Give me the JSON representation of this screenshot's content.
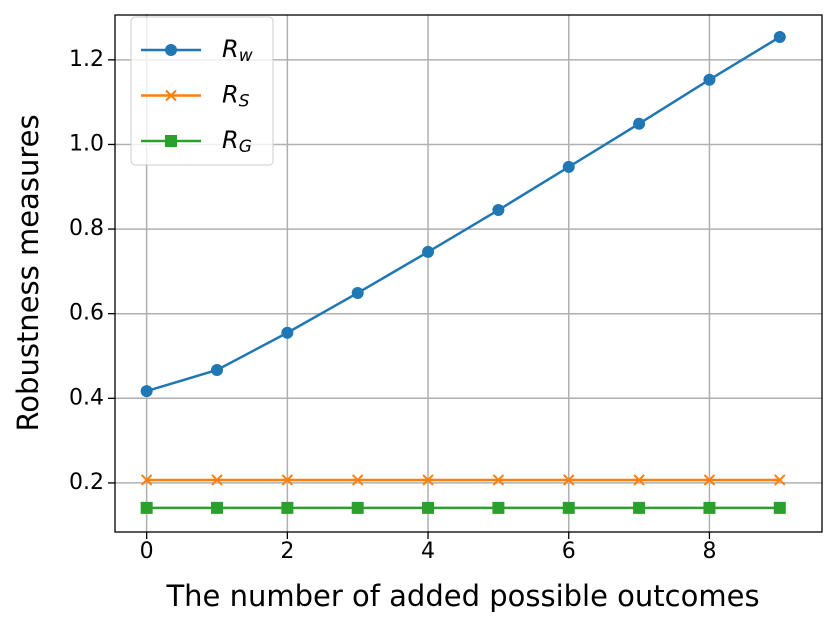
{
  "chart_data": {
    "type": "line",
    "xlabel": "The number of added possible outcomes",
    "ylabel": "Robustness measures",
    "x": [
      0,
      1,
      2,
      3,
      4,
      5,
      6,
      7,
      8,
      9
    ],
    "series": [
      {
        "name": "Rw",
        "color": "#1f77b4",
        "marker": "o",
        "values": [
          0.417,
          0.467,
          0.555,
          0.649,
          0.746,
          0.845,
          0.947,
          1.049,
          1.153,
          1.254
        ]
      },
      {
        "name": "RS",
        "color": "#ff7f0e",
        "marker": "x",
        "values": [
          0.207,
          0.207,
          0.207,
          0.207,
          0.207,
          0.207,
          0.207,
          0.207,
          0.207,
          0.207
        ]
      },
      {
        "name": "RG",
        "color": "#2ca02c",
        "marker": "s",
        "values": [
          0.141,
          0.141,
          0.141,
          0.141,
          0.141,
          0.141,
          0.141,
          0.141,
          0.141,
          0.141
        ]
      }
    ],
    "xlim": [
      -0.45,
      9.6
    ],
    "ylim": [
      0.084,
      1.306
    ],
    "xticks": [
      0,
      2,
      4,
      6,
      8
    ],
    "yticks": [
      0.2,
      0.4,
      0.6,
      0.8,
      {
        "value": 1,
        "label": "1.0"
      },
      1.2
    ],
    "grid": true,
    "legend": "upper left"
  }
}
